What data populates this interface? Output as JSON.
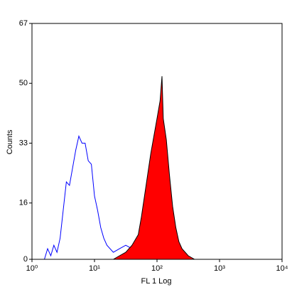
{
  "chart_data": {
    "type": "histogram",
    "xlabel": "FL 1 Log",
    "ylabel": "Counts",
    "xscale": "log",
    "xlim": [
      1,
      10000
    ],
    "xticks": [
      {
        "value": 1,
        "label": "10⁰"
      },
      {
        "value": 10,
        "label": "10¹"
      },
      {
        "value": 100,
        "label": "10²"
      },
      {
        "value": 1000,
        "label": "10³"
      },
      {
        "value": 10000,
        "label": "10⁴"
      }
    ],
    "ylim": [
      0,
      67
    ],
    "yticks": [
      0,
      16,
      33,
      50,
      67
    ],
    "series": [
      {
        "color": "#0000ff",
        "filled": false,
        "x": [
          1.58,
          1.78,
          2,
          2.24,
          2.51,
          2.82,
          3.16,
          3.55,
          3.98,
          4.47,
          5.01,
          5.62,
          6.31,
          7.08,
          7.94,
          8.91,
          10,
          11.2,
          12.6,
          14.1,
          15.8,
          20,
          25.1,
          31.6,
          39.8,
          50.1,
          63.1,
          79.4,
          100
        ],
        "values": [
          0,
          3,
          1,
          4,
          2,
          6,
          14,
          22,
          21,
          26,
          31,
          35,
          33,
          33,
          28,
          27,
          18,
          14,
          9,
          6,
          4,
          2,
          3,
          4,
          3,
          2,
          1,
          1,
          0
        ]
      },
      {
        "color": "#ff0000",
        "filled": true,
        "outline": "#000000",
        "x": [
          20,
          25.1,
          31.6,
          39.8,
          50.1,
          56.2,
          63.1,
          70.8,
          79.4,
          89.1,
          100,
          112,
          120,
          126,
          141,
          158,
          178,
          200,
          224,
          251,
          316,
          398
        ],
        "values": [
          0,
          1,
          2,
          4,
          7,
          12,
          18,
          24,
          30,
          35,
          40,
          45,
          52,
          40,
          34,
          24,
          15,
          9,
          5,
          3,
          1,
          0
        ]
      }
    ]
  }
}
